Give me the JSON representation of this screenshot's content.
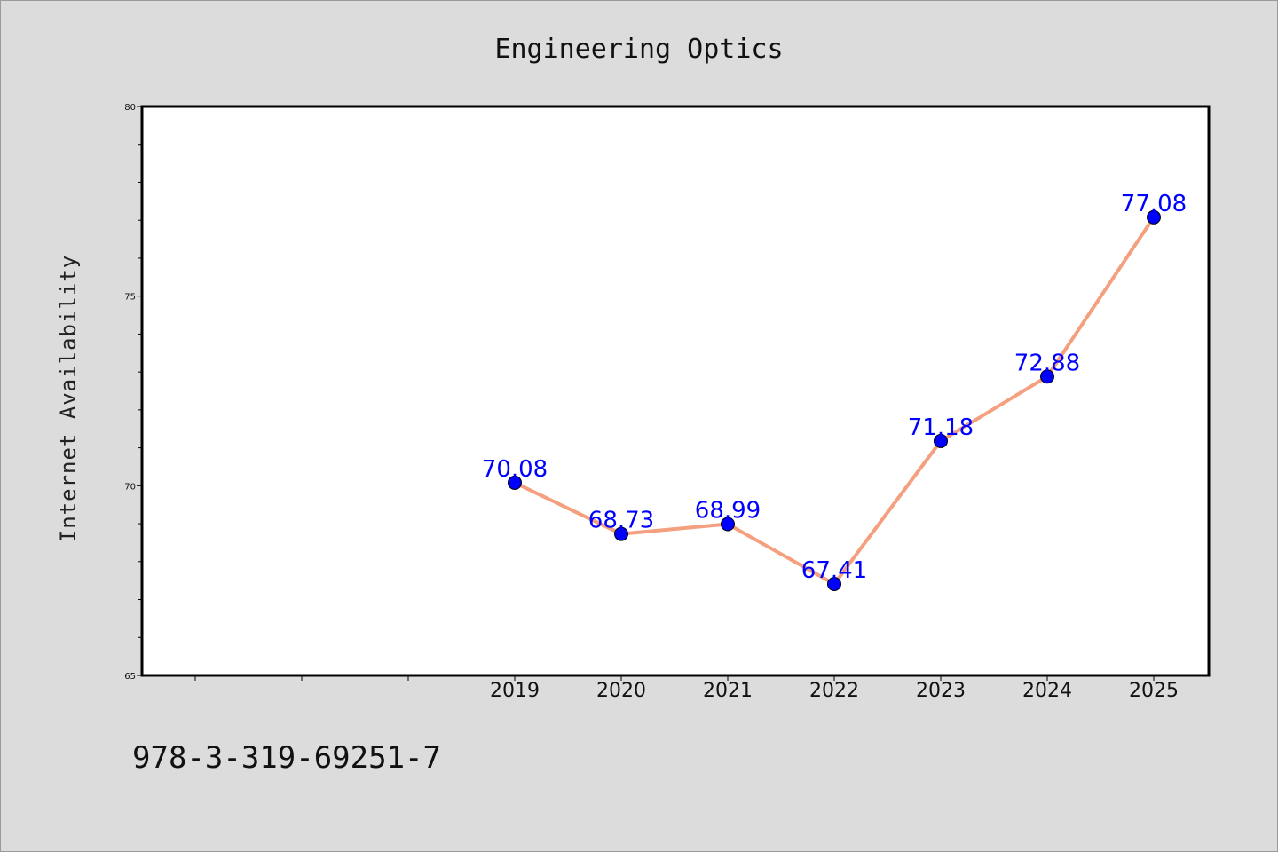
{
  "footer": {
    "isbn": "978-3-319-69251-7"
  },
  "colors": {
    "background": "#dcdcdc",
    "plot_background": "#ffffff",
    "line": "#f4a07f",
    "marker": "#0000ff",
    "data_label": "#0000ff"
  },
  "chart_data": {
    "type": "line",
    "title": "Engineering Optics",
    "xlabel": "",
    "ylabel": "Internet Availability",
    "x": [
      "2019",
      "2020",
      "2021",
      "2022",
      "2023",
      "2024",
      "2025"
    ],
    "series": [
      {
        "values": [
          70.08,
          68.73,
          68.99,
          67.41,
          71.18,
          72.88,
          77.08
        ],
        "labels": [
          "70.08",
          "68.73",
          "68.99",
          "67.41",
          "71.18",
          "72.88",
          "77.08"
        ]
      }
    ],
    "ylim": [
      65,
      80
    ],
    "yticks": [
      "65",
      "70",
      "75",
      "80"
    ],
    "grid": false,
    "legend": "none"
  }
}
